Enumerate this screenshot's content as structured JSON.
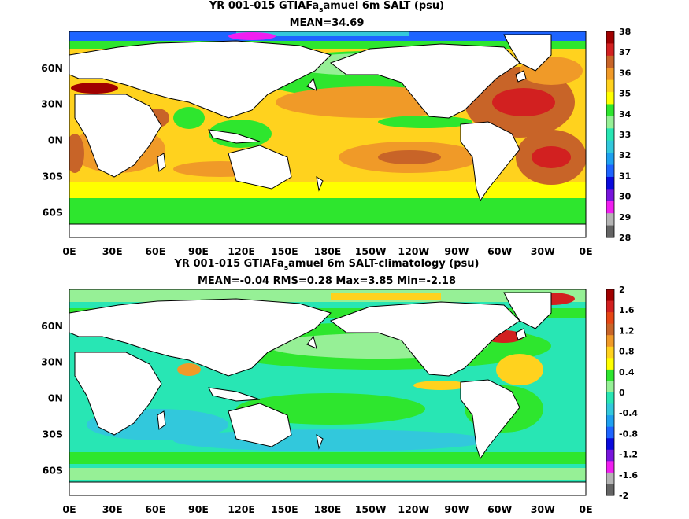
{
  "panel_top": {
    "title_line1_a": "YR 001-015 GTIAFa",
    "title_line1_sub": "s",
    "title_line1_b": "amuel 6m SALT (psu)",
    "title_line2": "MEAN=34.69",
    "lat_labels": [
      "60N",
      "30N",
      "0N",
      "30S",
      "60S"
    ],
    "lon_labels": [
      "0E",
      "30E",
      "60E",
      "90E",
      "120E",
      "150E",
      "180E",
      "150W",
      "120W",
      "90W",
      "60W",
      "30W",
      "0E"
    ],
    "colorbar_labels": [
      "38",
      "37",
      "36",
      "35",
      "34",
      "33",
      "32",
      "31",
      "30",
      "29",
      "28"
    ],
    "colorbar_colors": [
      "#a00000",
      "#d22020",
      "#c86428",
      "#f09a28",
      "#ffd21e",
      "#ffff00",
      "#2ee62e",
      "#96f096",
      "#28e6b4",
      "#32c8dc",
      "#1ea0f0",
      "#1e64ff",
      "#0a0adc",
      "#7814dc",
      "#f01ef0",
      "#b4b4b4",
      "#646464"
    ]
  },
  "panel_bottom": {
    "title_line1_a": "YR 001-015 GTIAFa",
    "title_line1_sub": "s",
    "title_line1_b": "amuel 6m SALT-climatology (psu)",
    "title_line2": "MEAN=-0.04   RMS=0.28   Max=3.85   Min=-2.18",
    "lat_labels": [
      "60N",
      "30N",
      "0N",
      "30S",
      "60S"
    ],
    "lon_labels": [
      "0E",
      "30E",
      "60E",
      "90E",
      "120E",
      "150E",
      "180E",
      "150W",
      "120W",
      "90W",
      "60W",
      "30W",
      "0E"
    ],
    "colorbar_labels": [
      "2",
      "1.6",
      "1.2",
      "0.8",
      "0.4",
      "0",
      "-0.4",
      "-0.8",
      "-1.2",
      "-1.6",
      "-2"
    ],
    "colorbar_colors": [
      "#a00000",
      "#d22020",
      "#e64614",
      "#c86428",
      "#f09a28",
      "#ffd21e",
      "#ffff00",
      "#2ee62e",
      "#96f096",
      "#28e6b4",
      "#32c8dc",
      "#1ea0f0",
      "#1e64ff",
      "#0a0adc",
      "#7814dc",
      "#f01ef0",
      "#b4b4b4",
      "#646464"
    ]
  }
}
